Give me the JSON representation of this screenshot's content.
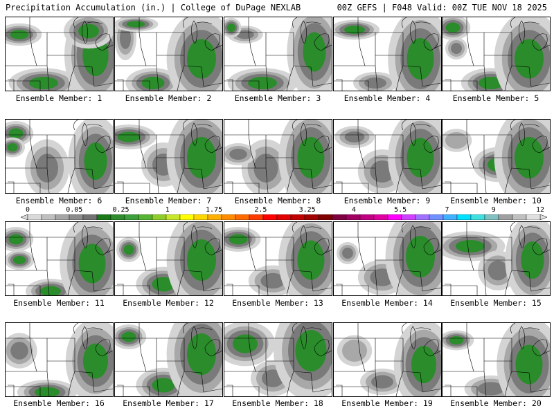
{
  "header": {
    "left": "Precipitation Accumulation (in.) | College of DuPage NEXLAB",
    "right": "00Z GEFS | F048 Valid: 00Z TUE NOV 18 2025"
  },
  "colorbar": {
    "labels": [
      "0",
      "0.05",
      "0.25",
      "1",
      "1.75",
      "2.5",
      "3.25",
      "4",
      "5.5",
      "7",
      "9",
      "12"
    ],
    "colors": [
      "#d9d9d9",
      "#bfbfbf",
      "#a6a6a6",
      "#8c8c8c",
      "#737373",
      "#1a7a1a",
      "#2e8b2e",
      "#3ca03c",
      "#55b532",
      "#8fce2a",
      "#c8e62a",
      "#ffff00",
      "#ffd700",
      "#ffb000",
      "#ff8c00",
      "#ff6a00",
      "#ff3c00",
      "#ff0000",
      "#e00000",
      "#c00000",
      "#a00000",
      "#800000",
      "#800040",
      "#a00060",
      "#c00080",
      "#e000a0",
      "#ff00ff",
      "#d040ff",
      "#a070ff",
      "#7090ff",
      "#40b0ff",
      "#00e0ff",
      "#40e0e0",
      "#80c0c0",
      "#a0a0a0",
      "#c0c0c0",
      "#e0e0e0"
    ]
  },
  "members": [
    {
      "label": "Ensemble Member: 1"
    },
    {
      "label": "Ensemble Member: 2"
    },
    {
      "label": "Ensemble Member: 3"
    },
    {
      "label": "Ensemble Member: 4"
    },
    {
      "label": "Ensemble Member: 5"
    },
    {
      "label": "Ensemble Member: 6"
    },
    {
      "label": "Ensemble Member: 7"
    },
    {
      "label": "Ensemble Member: 8"
    },
    {
      "label": "Ensemble Member: 9"
    },
    {
      "label": "Ensemble Member: 10"
    },
    {
      "label": "Ensemble Member: 11"
    },
    {
      "label": "Ensemble Member: 12"
    },
    {
      "label": "Ensemble Member: 13"
    },
    {
      "label": "Ensemble Member: 14"
    },
    {
      "label": "Ensemble Member: 15"
    },
    {
      "label": "Ensemble Member: 16"
    },
    {
      "label": "Ensemble Member: 17"
    },
    {
      "label": "Ensemble Member: 18"
    },
    {
      "label": "Ensemble Member: 19"
    },
    {
      "label": "Ensemble Member: 20"
    }
  ],
  "colors": {
    "light": "#d4d4d4",
    "mid": "#a8a8a8",
    "dark": "#7a7a7a",
    "green": "#2a8c2a",
    "line": "#000000"
  }
}
